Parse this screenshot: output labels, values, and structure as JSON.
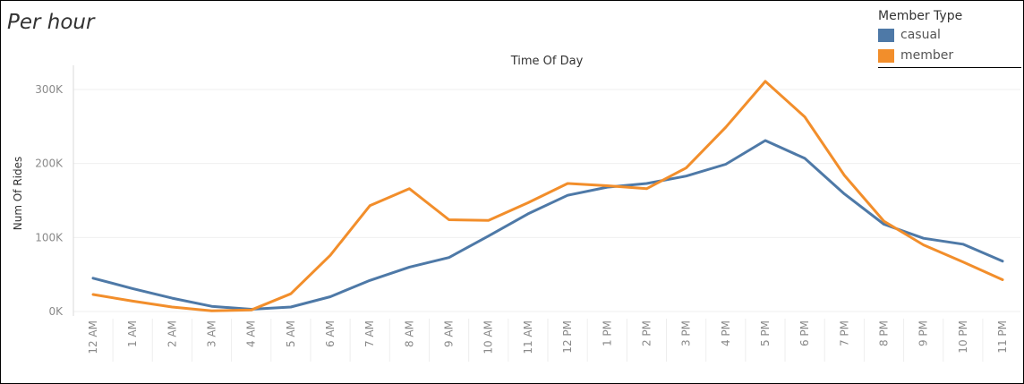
{
  "page": {
    "title": "Per hour"
  },
  "legend": {
    "title": "Member Type",
    "items": [
      {
        "label": "casual",
        "color": "#4e79a7"
      },
      {
        "label": "member",
        "color": "#f28e2b"
      }
    ]
  },
  "chart_data": {
    "type": "line",
    "title": "Time Of Day",
    "ylabel": "Num Of Rides",
    "xlabel": "",
    "ylim": [
      0,
      300000
    ],
    "yticks": [
      0,
      100000,
      200000,
      300000
    ],
    "ytick_labels": [
      "0K",
      "100K",
      "200K",
      "300K"
    ],
    "grid": true,
    "legend_position": "top-right",
    "categories": [
      "12 AM",
      "1 AM",
      "2 AM",
      "3 AM",
      "4 AM",
      "5 AM",
      "6 AM",
      "7 AM",
      "8 AM",
      "9 AM",
      "10 AM",
      "11 AM",
      "12 PM",
      "1 PM",
      "2 PM",
      "3 PM",
      "4 PM",
      "5 PM",
      "6 PM",
      "7 PM",
      "8 PM",
      "9 PM",
      "10 PM",
      "11 PM"
    ],
    "series": [
      {
        "name": "casual",
        "color": "#4e79a7",
        "values": [
          45000,
          31000,
          18000,
          7000,
          3000,
          6000,
          20000,
          42000,
          60000,
          73000,
          102000,
          132000,
          157000,
          168000,
          173000,
          183000,
          199000,
          231000,
          207000,
          159000,
          118000,
          99000,
          91000,
          68000
        ]
      },
      {
        "name": "member",
        "color": "#f28e2b",
        "values": [
          23000,
          14000,
          6000,
          1000,
          2000,
          24000,
          76000,
          143000,
          166000,
          124000,
          123000,
          147000,
          173000,
          170000,
          166000,
          194000,
          249000,
          311000,
          263000,
          184000,
          122000,
          90000,
          67000,
          43000
        ]
      }
    ]
  }
}
